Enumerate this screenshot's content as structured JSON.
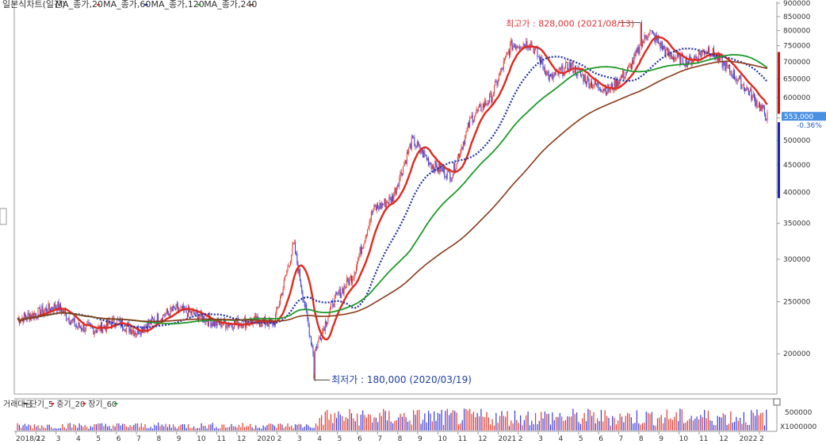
{
  "chart_data": {
    "type": "line",
    "legend": [
      "일본식차트(일간)",
      "MA_종가,20",
      "MA_종가,60",
      "MA_종가,120",
      "MA_종가,240"
    ],
    "volume_legend": [
      "거래대금",
      "단기_5",
      "중기_20",
      "장기_60"
    ],
    "colors": {
      "up": "#e23a2e",
      "down": "#3a3ad6",
      "ma20": "#e02a1e",
      "ma60": "#1f2fa0",
      "ma120": "#1e9a2a",
      "ma240": "#8b3a1a",
      "current": "#4a90e2",
      "axis_bar_red": "#cc1010",
      "axis_bar_blue": "#2020c0"
    },
    "x_axis": [
      "2018/12",
      "2",
      "3",
      "4",
      "5",
      "6",
      "7",
      "8",
      "9",
      "10",
      "11",
      "12",
      "2020",
      "2",
      "3",
      "4",
      "5",
      "6",
      "7",
      "8",
      "9",
      "10",
      "11",
      "12",
      "2021",
      "2",
      "3",
      "4",
      "5",
      "6",
      "7",
      "8",
      "9",
      "10",
      "11",
      "12",
      "2022",
      "2"
    ],
    "y_axis": [
      "900000",
      "850000",
      "800000",
      "750000",
      "700000",
      "650000",
      "600000",
      "550000",
      "500000",
      "450000",
      "400000",
      "350000",
      "300000",
      "250000",
      "200000"
    ],
    "ylim": [
      170000,
      900000
    ],
    "log_scale": true,
    "annotations": {
      "high": "최고가 : 828,000 (2021/08/13)",
      "low": "최저가 : 180,000 (2020/03/19)",
      "current_price": "553,000",
      "current_change": "-0.36%"
    },
    "volume_axis": {
      "tick": "500000",
      "unit": "X1000000"
    },
    "prices_by_month": [
      [
        "2018/12",
        232000
      ],
      [
        "2019/01",
        238000
      ],
      [
        "2019/02",
        246000
      ],
      [
        "2019/03",
        225000
      ],
      [
        "2019/04",
        222000
      ],
      [
        "2019/05",
        230000
      ],
      [
        "2019/06",
        220000
      ],
      [
        "2019/07",
        232000
      ],
      [
        "2019/08",
        242000
      ],
      [
        "2019/09",
        237000
      ],
      [
        "2019/10",
        228000
      ],
      [
        "2019/11",
        228000
      ],
      [
        "2019/12",
        230000
      ],
      [
        "2020/01",
        228000
      ],
      [
        "2020/02",
        320000
      ],
      [
        "2020/03",
        200000
      ],
      [
        "2020/04",
        250000
      ],
      [
        "2020/05",
        280000
      ],
      [
        "2020/06",
        370000
      ],
      [
        "2020/07",
        390000
      ],
      [
        "2020/08",
        500000
      ],
      [
        "2020/09",
        450000
      ],
      [
        "2020/10",
        430000
      ],
      [
        "2020/11",
        550000
      ],
      [
        "2020/12",
        600000
      ],
      [
        "2021/01",
        750000
      ],
      [
        "2021/02",
        760000
      ],
      [
        "2021/03",
        650000
      ],
      [
        "2021/04",
        690000
      ],
      [
        "2021/05",
        640000
      ],
      [
        "2021/06",
        620000
      ],
      [
        "2021/07",
        680000
      ],
      [
        "2021/08",
        800000
      ],
      [
        "2021/09",
        720000
      ],
      [
        "2021/10",
        700000
      ],
      [
        "2021/11",
        740000
      ],
      [
        "2021/12",
        680000
      ],
      [
        "2022/01",
        620000
      ],
      [
        "2022/02",
        553000
      ]
    ]
  }
}
